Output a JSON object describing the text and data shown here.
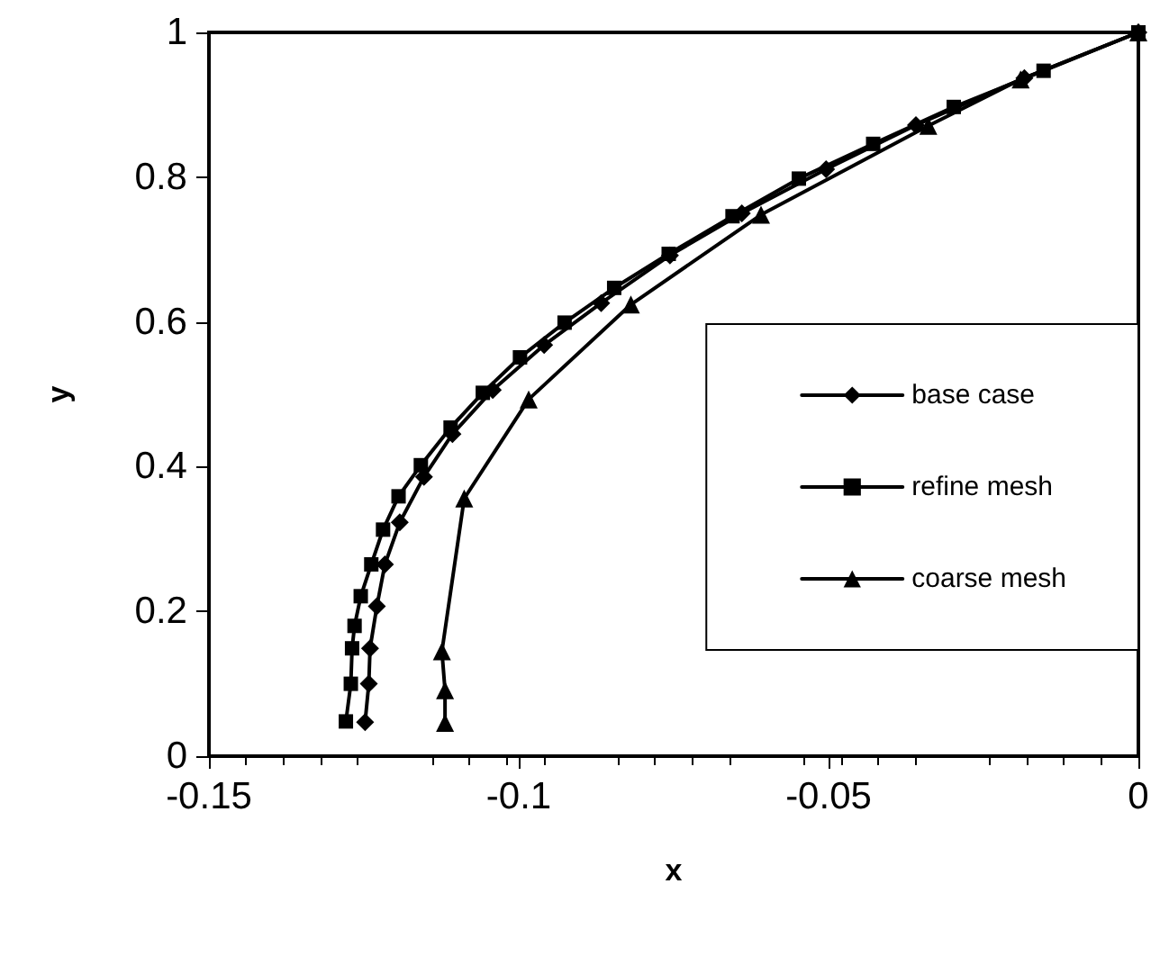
{
  "chart_data": {
    "type": "line",
    "xlabel": "x",
    "ylabel": "y",
    "xlim": [
      -0.15,
      0
    ],
    "xticks": [
      -0.15,
      -0.1,
      -0.05,
      0
    ],
    "ylim": [
      0,
      1
    ],
    "yticks": [
      0,
      0.2,
      0.4,
      0.6,
      0.8,
      1
    ],
    "grid": false,
    "legend": "center right",
    "line_style": "solid",
    "series": [
      {
        "name": "base case",
        "color": "#000000",
        "marker": "diamond",
        "x": [
          -0.1248,
          -0.1242,
          -0.124,
          -0.1229,
          -0.1216,
          -0.1192,
          -0.1153,
          -0.1107,
          -0.1042,
          -0.0959,
          -0.0867,
          -0.0756,
          -0.064,
          -0.0504,
          -0.0359,
          -0.0184,
          0
        ],
        "values": [
          0.047,
          0.1,
          0.149,
          0.207,
          0.265,
          0.323,
          0.386,
          0.445,
          0.506,
          0.568,
          0.626,
          0.692,
          0.75,
          0.811,
          0.872,
          0.937,
          1
        ]
      },
      {
        "name": "refine mesh",
        "color": "#000000",
        "marker": "square",
        "x": [
          -0.1279,
          -0.1271,
          -0.1269,
          -0.1265,
          -0.1255,
          -0.1238,
          -0.1219,
          -0.1194,
          -0.1158,
          -0.111,
          -0.1058,
          -0.0998,
          -0.0926,
          -0.0846,
          -0.0758,
          -0.0655,
          -0.0548,
          -0.0428,
          -0.0298,
          -0.0153,
          0
        ],
        "values": [
          0.048,
          0.1,
          0.149,
          0.18,
          0.221,
          0.265,
          0.313,
          0.359,
          0.402,
          0.454,
          0.502,
          0.551,
          0.599,
          0.647,
          0.694,
          0.746,
          0.798,
          0.846,
          0.897,
          0.947,
          1
        ]
      },
      {
        "name": "coarse mesh",
        "color": "#000000",
        "marker": "triangle",
        "x": [
          -0.1119,
          -0.1119,
          -0.1124,
          -0.1088,
          -0.0984,
          -0.0819,
          -0.0609,
          -0.0339,
          -0.019,
          0
        ],
        "values": [
          0.046,
          0.091,
          0.145,
          0.356,
          0.493,
          0.624,
          0.748,
          0.871,
          0.935,
          1
        ]
      }
    ]
  }
}
